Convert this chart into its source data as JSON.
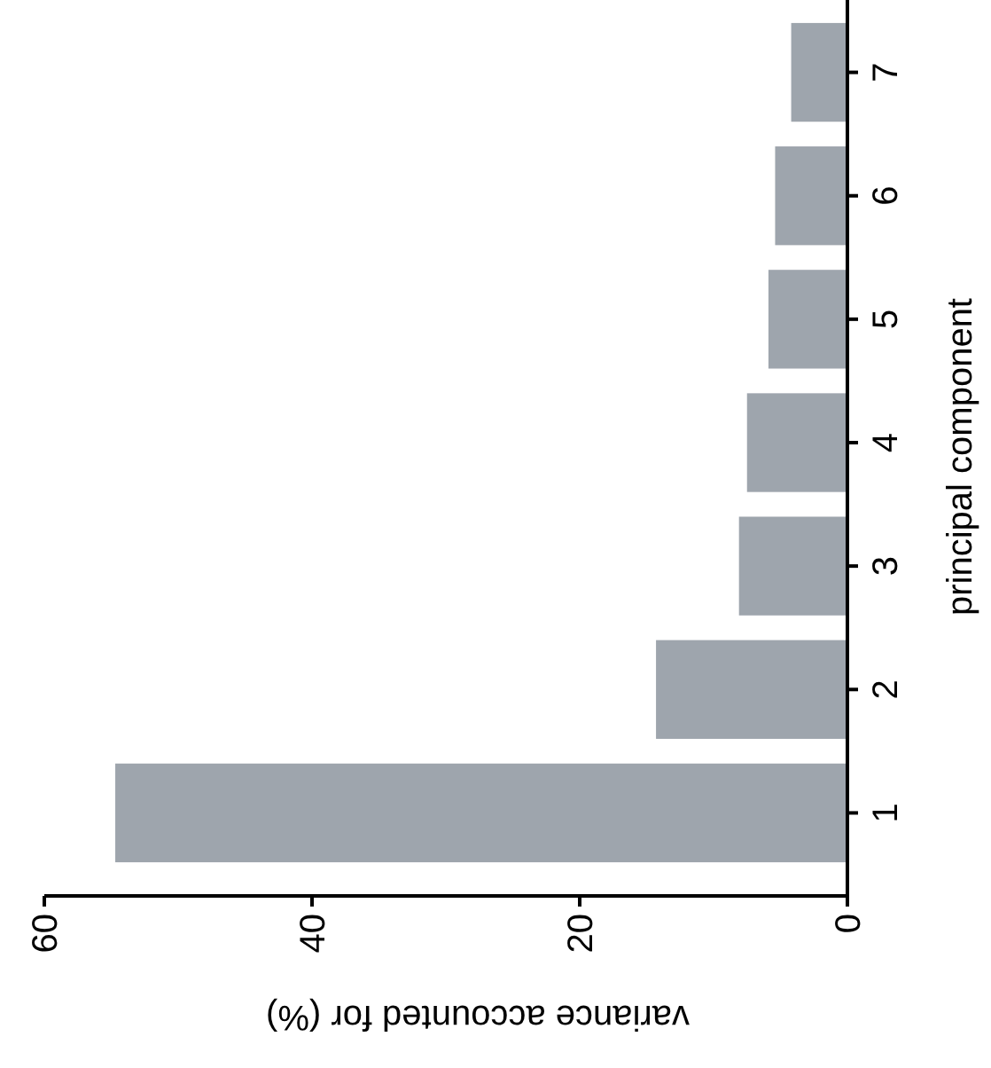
{
  "chart_data": {
    "type": "bar",
    "orientation": "horizontal",
    "xlabel": "variance accounted for (%)",
    "ylabel": "principal component",
    "categories": [
      "7",
      "6",
      "5",
      "4",
      "3",
      "2",
      "1"
    ],
    "values": [
      4.2,
      5.4,
      5.9,
      7.5,
      8.1,
      14.3,
      54.7
    ],
    "color": "#9ea5ad",
    "xlim": [
      60,
      0
    ],
    "xticks": [
      60,
      40,
      20,
      0
    ],
    "grid": false
  }
}
